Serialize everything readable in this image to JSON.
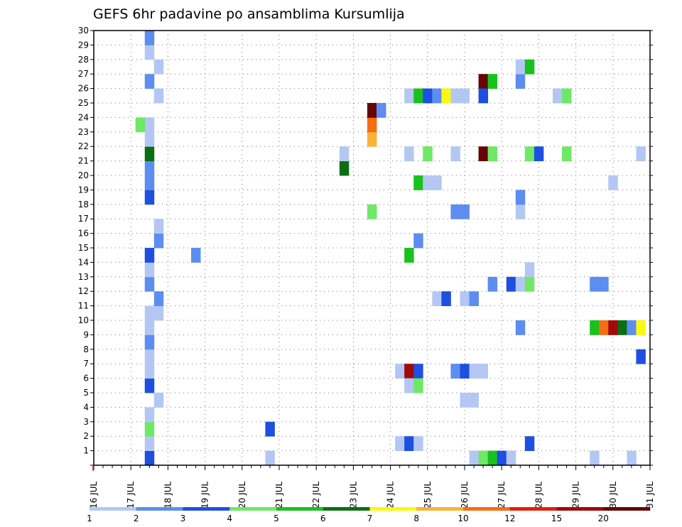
{
  "chart_data": {
    "type": "heatmap",
    "title": "GEFS 6hr padavine po ansamblima Kursumlija",
    "xlabel": "",
    "ylabel": "",
    "x_ticks": [
      "16 JUL",
      "17 JUL",
      "18 JUL",
      "19 JUL",
      "20 JUL",
      "21 JUL",
      "22 JUL",
      "23 JUL",
      "24 JUL",
      "25 JUL",
      "26 JUL",
      "27 JUL",
      "28 JUL",
      "29 JUL",
      "30 JUL",
      "31 JUL"
    ],
    "y_ticks": [
      "1",
      "2",
      "3",
      "4",
      "5",
      "6",
      "7",
      "8",
      "9",
      "10",
      "11",
      "12",
      "13",
      "14",
      "15",
      "16",
      "17",
      "18",
      "19",
      "20",
      "21",
      "22",
      "23",
      "24",
      "25",
      "26",
      "27",
      "28",
      "29",
      "30"
    ],
    "ylim": [
      0,
      30
    ],
    "xlim_days": [
      16,
      31
    ],
    "grid": true,
    "time_step_hours": 6,
    "colorbar": {
      "labels": [
        "1",
        "2",
        "3",
        "4",
        "5",
        "6",
        "7",
        "8",
        "10",
        "12",
        "15",
        "20"
      ],
      "colors": [
        "#b4c7f4",
        "#5d8df0",
        "#1e4fe0",
        "#6fe866",
        "#18c21c",
        "#0b6e13",
        "#fbf80f",
        "#fbb13a",
        "#f56d14",
        "#e0200c",
        "#a00a0a",
        "#660505"
      ]
    },
    "cells": [
      {
        "x": "17.50",
        "y": 0,
        "v": 3
      },
      {
        "x": "17.50",
        "y": 1,
        "v": 1
      },
      {
        "x": "17.50",
        "y": 2,
        "v": 4
      },
      {
        "x": "17.50",
        "y": 3,
        "v": 1
      },
      {
        "x": "17.50",
        "y": 5,
        "v": 3
      },
      {
        "x": "17.50",
        "y": 6,
        "v": 1
      },
      {
        "x": "17.50",
        "y": 7,
        "v": 1
      },
      {
        "x": "17.50",
        "y": 8,
        "v": 2
      },
      {
        "x": "17.50",
        "y": 9,
        "v": 1
      },
      {
        "x": "17.50",
        "y": 10,
        "v": 1
      },
      {
        "x": "17.50",
        "y": 12,
        "v": 2
      },
      {
        "x": "17.50",
        "y": 13,
        "v": 1
      },
      {
        "x": "17.50",
        "y": 14,
        "v": 3
      },
      {
        "x": "17.50",
        "y": 18,
        "v": 3
      },
      {
        "x": "17.50",
        "y": 19,
        "v": 2
      },
      {
        "x": "17.50",
        "y": 20,
        "v": 2
      },
      {
        "x": "17.50",
        "y": 21,
        "v": 6
      },
      {
        "x": "17.50",
        "y": 22,
        "v": 1
      },
      {
        "x": "17.50",
        "y": 23,
        "v": 1
      },
      {
        "x": "17.50",
        "y": 26,
        "v": 2
      },
      {
        "x": "17.50",
        "y": 28,
        "v": 1
      },
      {
        "x": "17.50",
        "y": 29,
        "v": 2
      },
      {
        "x": "17.75",
        "y": 10,
        "v": 1
      },
      {
        "x": "17.75",
        "y": 11,
        "v": 2
      },
      {
        "x": "17.75",
        "y": 4,
        "v": 1
      },
      {
        "x": "17.75",
        "y": 15,
        "v": 2
      },
      {
        "x": "17.75",
        "y": 16,
        "v": 1
      },
      {
        "x": "17.75",
        "y": 25,
        "v": 1
      },
      {
        "x": "17.75",
        "y": 27,
        "v": 1
      },
      {
        "x": "17.25",
        "y": 23,
        "v": 4
      },
      {
        "x": "18.75",
        "y": 14,
        "v": 2
      },
      {
        "x": "20.75",
        "y": 2,
        "v": 3
      },
      {
        "x": "20.75",
        "y": 0,
        "v": 1
      },
      {
        "x": "22.75",
        "y": 20,
        "v": 6
      },
      {
        "x": "22.75",
        "y": 21,
        "v": 1
      },
      {
        "x": "23.50",
        "y": 22,
        "v": 8
      },
      {
        "x": "23.50",
        "y": 23,
        "v": 9
      },
      {
        "x": "23.50",
        "y": 24,
        "v": 12
      },
      {
        "x": "23.50",
        "y": 17,
        "v": 4
      },
      {
        "x": "23.75",
        "y": 24,
        "v": 2
      },
      {
        "x": "24.25",
        "y": 6,
        "v": 1
      },
      {
        "x": "24.25",
        "y": 1,
        "v": 1
      },
      {
        "x": "24.50",
        "y": 6,
        "v": 11
      },
      {
        "x": "24.50",
        "y": 5,
        "v": 1
      },
      {
        "x": "24.50",
        "y": 1,
        "v": 3
      },
      {
        "x": "24.50",
        "y": 14,
        "v": 5
      },
      {
        "x": "24.50",
        "y": 21,
        "v": 1
      },
      {
        "x": "24.50",
        "y": 25,
        "v": 1
      },
      {
        "x": "24.75",
        "y": 6,
        "v": 3
      },
      {
        "x": "24.75",
        "y": 5,
        "v": 4
      },
      {
        "x": "24.75",
        "y": 1,
        "v": 1
      },
      {
        "x": "24.75",
        "y": 15,
        "v": 2
      },
      {
        "x": "24.75",
        "y": 19,
        "v": 5
      },
      {
        "x": "24.75",
        "y": 25,
        "v": 5
      },
      {
        "x": "25.00",
        "y": 19,
        "v": 1
      },
      {
        "x": "25.00",
        "y": 21,
        "v": 4
      },
      {
        "x": "25.00",
        "y": 25,
        "v": 3
      },
      {
        "x": "25.25",
        "y": 19,
        "v": 1
      },
      {
        "x": "25.25",
        "y": 11,
        "v": 1
      },
      {
        "x": "25.25",
        "y": 25,
        "v": 2
      },
      {
        "x": "25.50",
        "y": 11,
        "v": 3
      },
      {
        "x": "25.50",
        "y": 25,
        "v": 7
      },
      {
        "x": "25.75",
        "y": 21,
        "v": 1
      },
      {
        "x": "25.75",
        "y": 25,
        "v": 1
      },
      {
        "x": "25.75",
        "y": 6,
        "v": 2
      },
      {
        "x": "25.75",
        "y": 17,
        "v": 2
      },
      {
        "x": "26.00",
        "y": 6,
        "v": 3
      },
      {
        "x": "26.00",
        "y": 17,
        "v": 2
      },
      {
        "x": "26.00",
        "y": 11,
        "v": 1
      },
      {
        "x": "26.00",
        "y": 4,
        "v": 1
      },
      {
        "x": "26.00",
        "y": 25,
        "v": 1
      },
      {
        "x": "26.25",
        "y": 6,
        "v": 1
      },
      {
        "x": "26.25",
        "y": 11,
        "v": 2
      },
      {
        "x": "26.25",
        "y": 4,
        "v": 1
      },
      {
        "x": "26.25",
        "y": 0,
        "v": 1
      },
      {
        "x": "26.50",
        "y": 6,
        "v": 1
      },
      {
        "x": "26.50",
        "y": 0,
        "v": 4
      },
      {
        "x": "26.50",
        "y": 21,
        "v": 12
      },
      {
        "x": "26.50",
        "y": 26,
        "v": 12
      },
      {
        "x": "26.50",
        "y": 25,
        "v": 3
      },
      {
        "x": "26.75",
        "y": 12,
        "v": 2
      },
      {
        "x": "26.75",
        "y": 21,
        "v": 4
      },
      {
        "x": "26.75",
        "y": 26,
        "v": 5
      },
      {
        "x": "26.75",
        "y": 0,
        "v": 5
      },
      {
        "x": "27.00",
        "y": 0,
        "v": 3
      },
      {
        "x": "27.25",
        "y": 12,
        "v": 3
      },
      {
        "x": "27.25",
        "y": 0,
        "v": 1
      },
      {
        "x": "27.50",
        "y": 12,
        "v": 1
      },
      {
        "x": "27.50",
        "y": 9,
        "v": 2
      },
      {
        "x": "27.50",
        "y": 17,
        "v": 1
      },
      {
        "x": "27.50",
        "y": 18,
        "v": 2
      },
      {
        "x": "27.50",
        "y": 26,
        "v": 2
      },
      {
        "x": "27.50",
        "y": 27,
        "v": 1
      },
      {
        "x": "27.75",
        "y": 12,
        "v": 4
      },
      {
        "x": "27.75",
        "y": 13,
        "v": 1
      },
      {
        "x": "27.75",
        "y": 1,
        "v": 3
      },
      {
        "x": "27.75",
        "y": 21,
        "v": 4
      },
      {
        "x": "27.75",
        "y": 27,
        "v": 5
      },
      {
        "x": "28.00",
        "y": 21,
        "v": 3
      },
      {
        "x": "28.50",
        "y": 25,
        "v": 1
      },
      {
        "x": "28.75",
        "y": 25,
        "v": 4
      },
      {
        "x": "28.75",
        "y": 21,
        "v": 4
      },
      {
        "x": "29.50",
        "y": 0,
        "v": 1
      },
      {
        "x": "29.50",
        "y": 12,
        "v": 2
      },
      {
        "x": "29.50",
        "y": 9,
        "v": 5
      },
      {
        "x": "29.75",
        "y": 12,
        "v": 2
      },
      {
        "x": "29.75",
        "y": 9,
        "v": 9
      },
      {
        "x": "30.00",
        "y": 9,
        "v": 11
      },
      {
        "x": "30.00",
        "y": 19,
        "v": 1
      },
      {
        "x": "30.25",
        "y": 9,
        "v": 6
      },
      {
        "x": "30.50",
        "y": 9,
        "v": 2
      },
      {
        "x": "30.50",
        "y": 0,
        "v": 1
      },
      {
        "x": "30.75",
        "y": 9,
        "v": 7
      },
      {
        "x": "30.75",
        "y": 7,
        "v": 3
      },
      {
        "x": "30.75",
        "y": 21,
        "v": 1
      }
    ]
  }
}
